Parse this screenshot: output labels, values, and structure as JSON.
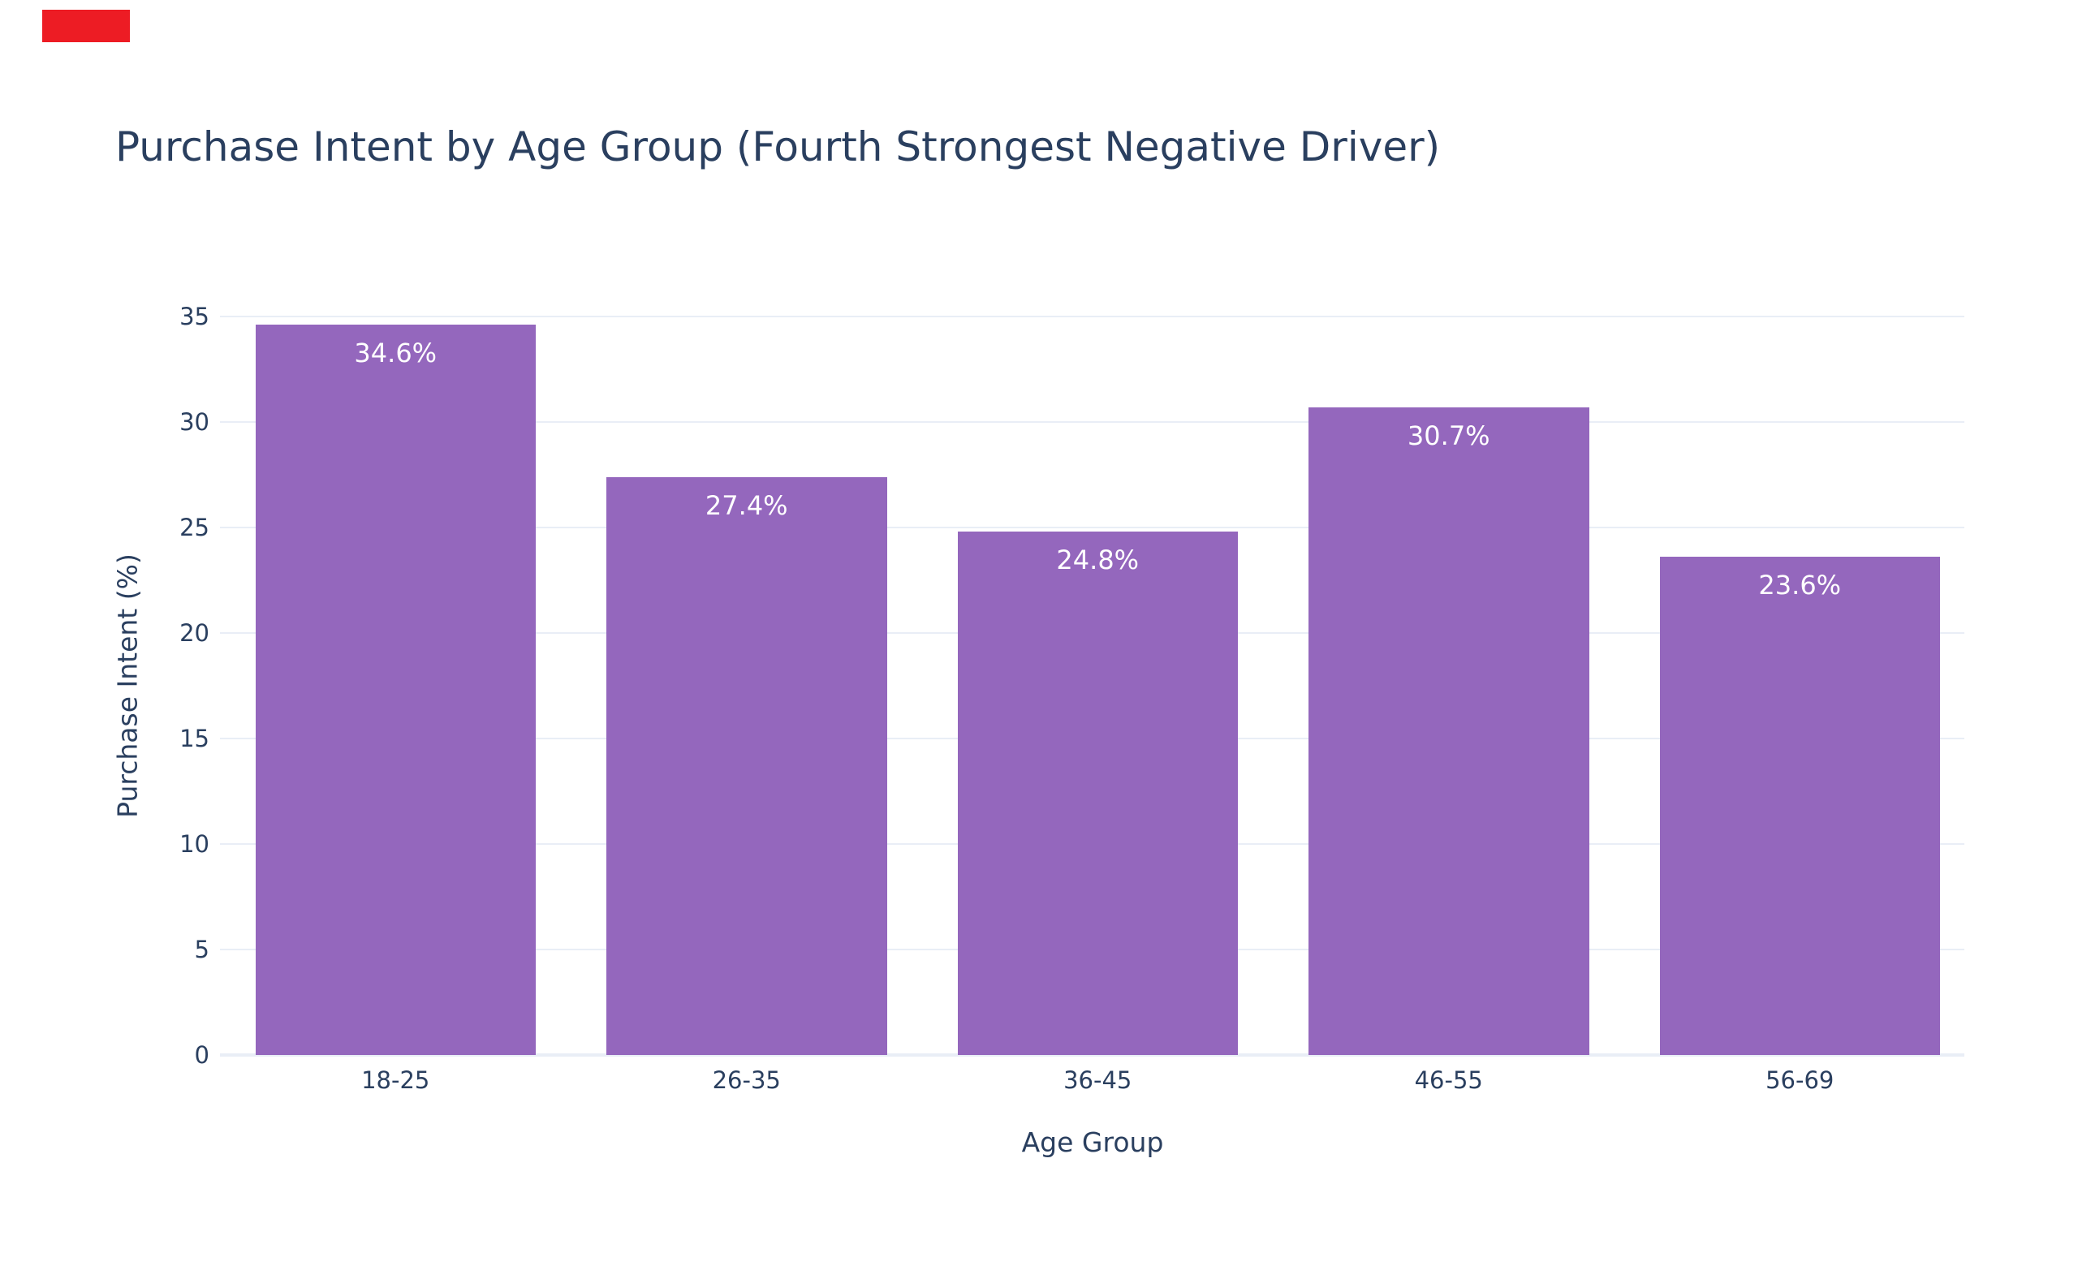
{
  "page": {
    "background": "#ffffff"
  },
  "red_marker": {
    "color": "#ed1c24"
  },
  "chart_data": {
    "type": "bar",
    "title": "Purchase Intent by Age Group (Fourth Strongest Negative Driver)",
    "xlabel": "Age Group",
    "ylabel": "Purchase Intent (%)",
    "categories": [
      "18-25",
      "26-35",
      "36-45",
      "46-55",
      "56-69"
    ],
    "values": [
      34.6,
      27.4,
      24.8,
      30.7,
      23.6
    ],
    "bar_labels": [
      "34.6%",
      "27.4%",
      "24.8%",
      "30.7%",
      "23.6%"
    ],
    "yticks": [
      0,
      5,
      10,
      15,
      20,
      25,
      30,
      35
    ],
    "ylim": [
      0,
      36.5
    ],
    "grid": true,
    "legend_position": "none",
    "colors": {
      "bar": "#9467bd",
      "bar_label": "#ffffff",
      "grid": "#e9eef6",
      "zeroline": "#e9eef6",
      "text": "#2a3f5f",
      "background": "#ffffff"
    }
  }
}
